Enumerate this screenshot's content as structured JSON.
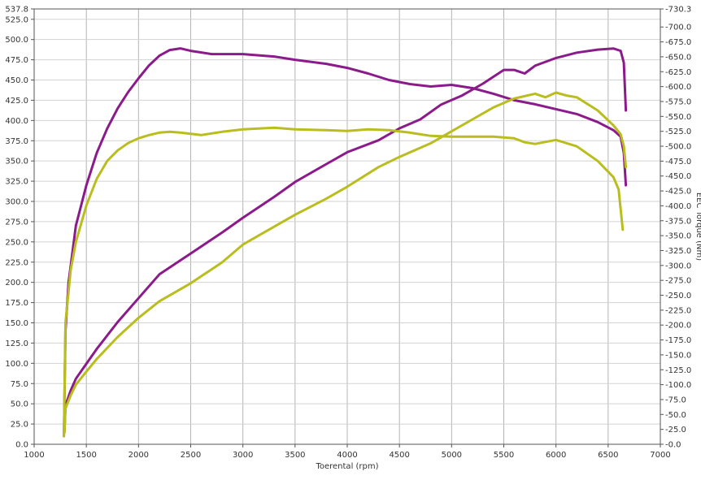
{
  "chart_data": {
    "type": "line",
    "title": "",
    "xlabel": "Toerental (rpm)",
    "ylabel_left": "",
    "ylabel_right": "EEC Torque (Nm)",
    "xlim": [
      1000,
      7000
    ],
    "ylim_left": [
      0,
      537.8
    ],
    "ylim_right": [
      0,
      730.3
    ],
    "x_ticks": [
      "1000",
      "1500",
      "2000",
      "2500",
      "3000",
      "3500",
      "4000",
      "4500",
      "5000",
      "5500",
      "6000",
      "6500",
      "7000"
    ],
    "y_left_ticks": [
      "0.0",
      "25.0",
      "50.0",
      "75.0",
      "100.0",
      "125.0",
      "150.0",
      "175.0",
      "200.0",
      "225.0",
      "250.0",
      "275.0",
      "300.0",
      "325.0",
      "350.0",
      "375.0",
      "400.0",
      "425.0",
      "450.0",
      "475.0",
      "500.0",
      "525.0",
      "537.8"
    ],
    "y_right_ticks": [
      "0.0",
      "25.0",
      "50.0",
      "75.0",
      "100.0",
      "125.0",
      "150.0",
      "175.0",
      "200.0",
      "225.0",
      "250.0",
      "275.0",
      "300.0",
      "325.0",
      "350.0",
      "375.0",
      "400.0",
      "425.0",
      "450.0",
      "475.0",
      "500.0",
      "525.0",
      "550.0",
      "575.0",
      "600.0",
      "625.0",
      "650.0",
      "675.0",
      "700.0",
      "730.3"
    ],
    "grid": true,
    "legend": "none",
    "series": [
      {
        "color": "#8b1a8b",
        "axis": "left",
        "x": [
          1285,
          1300,
          1330,
          1400,
          1500,
          1600,
          1700,
          1800,
          1900,
          2000,
          2100,
          2200,
          2300,
          2400,
          2500,
          2700,
          3000,
          3300,
          3500,
          3800,
          4000,
          4200,
          4400,
          4600,
          4800,
          5000,
          5200,
          5400,
          5600,
          5800,
          6000,
          6200,
          6400,
          6550,
          6620,
          6650,
          6670
        ],
        "y": [
          10,
          140,
          200,
          270,
          320,
          360,
          390,
          415,
          435,
          452,
          468,
          480,
          487,
          489,
          486,
          482,
          482,
          479,
          475,
          470,
          465,
          458,
          450,
          445,
          442,
          444,
          440,
          433,
          425,
          420,
          414,
          408,
          398,
          388,
          380,
          360,
          320
        ]
      },
      {
        "color": "#8b1a8b",
        "axis": "right",
        "x": [
          1290,
          1300,
          1350,
          1400,
          1500,
          1600,
          1800,
          2000,
          2200,
          2500,
          2800,
          3000,
          3300,
          3500,
          3800,
          4000,
          4300,
          4500,
          4700,
          4900,
          5100,
          5300,
          5500,
          5600,
          5700,
          5800,
          6000,
          6200,
          6400,
          6550,
          6620,
          6650,
          6670
        ],
        "y": [
          20,
          65,
          90,
          110,
          135,
          160,
          205,
          245,
          285,
          320,
          355,
          380,
          415,
          440,
          470,
          490,
          510,
          530,
          545,
          570,
          585,
          605,
          628,
          628,
          622,
          635,
          648,
          657,
          662,
          664,
          660,
          640,
          560
        ]
      },
      {
        "color": "#b9be1e",
        "axis": "left",
        "x": [
          1285,
          1300,
          1350,
          1400,
          1500,
          1600,
          1700,
          1800,
          1900,
          2000,
          2100,
          2200,
          2300,
          2400,
          2600,
          2800,
          3000,
          3300,
          3500,
          3800,
          4000,
          4200,
          4400,
          4600,
          4800,
          5000,
          5200,
          5400,
          5600,
          5700,
          5800,
          6000,
          6200,
          6400,
          6550,
          6600,
          6640
        ],
        "y": [
          10,
          150,
          215,
          250,
          295,
          328,
          350,
          363,
          372,
          378,
          382,
          385,
          386,
          385,
          382,
          386,
          389,
          391,
          389,
          388,
          387,
          389,
          388,
          385,
          381,
          380,
          380,
          380,
          378,
          373,
          371,
          376,
          368,
          350,
          330,
          315,
          265
        ]
      },
      {
        "color": "#b9be1e",
        "axis": "right",
        "x": [
          1290,
          1300,
          1350,
          1400,
          1500,
          1600,
          1800,
          2000,
          2200,
          2500,
          2800,
          3000,
          3300,
          3500,
          3800,
          4000,
          4300,
          4500,
          4800,
          5000,
          5200,
          5400,
          5600,
          5800,
          5900,
          6000,
          6100,
          6200,
          6400,
          6550,
          6620,
          6650,
          6670
        ],
        "y": [
          20,
          60,
          82,
          100,
          122,
          143,
          180,
          212,
          240,
          270,
          305,
          335,
          365,
          385,
          412,
          432,
          465,
          482,
          505,
          525,
          545,
          565,
          580,
          588,
          582,
          590,
          585,
          582,
          560,
          535,
          520,
          500,
          465
        ]
      }
    ]
  }
}
